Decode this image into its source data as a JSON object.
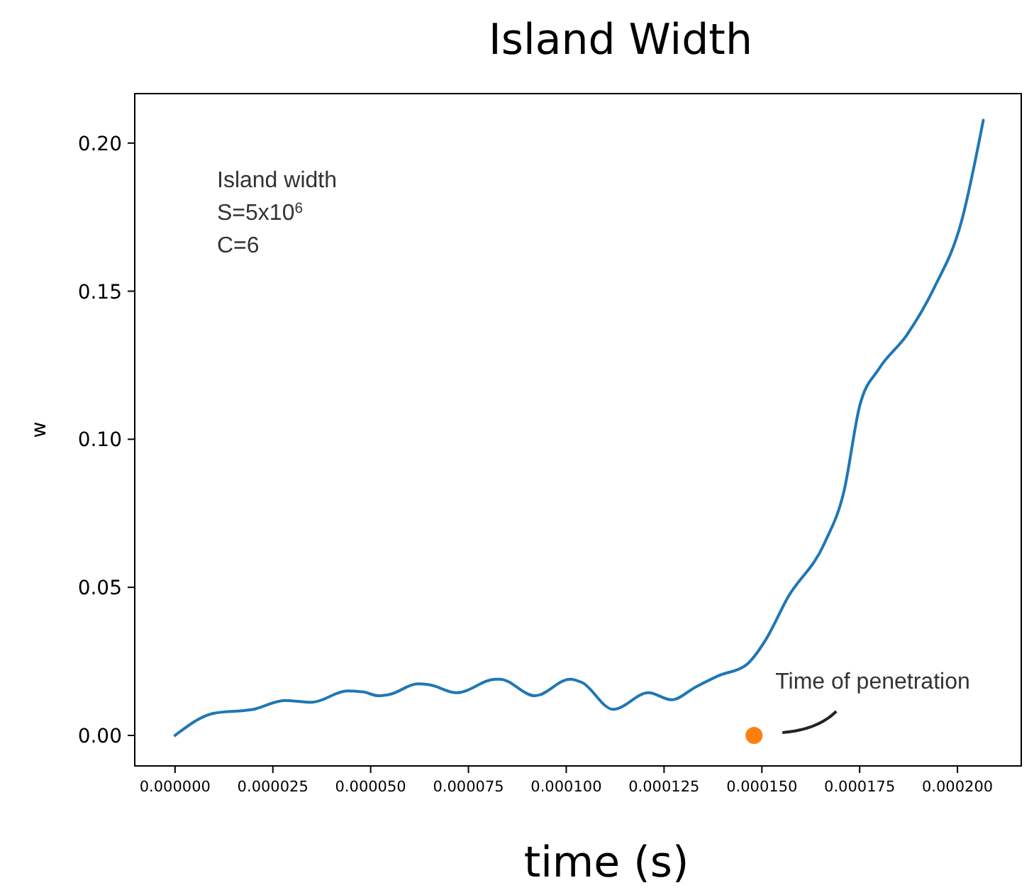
{
  "chart_data": {
    "type": "line",
    "title": "Island Width",
    "xlabel": "time (s)",
    "ylabel": "w",
    "xlim": [
      -1.03e-05,
      0.0002163
    ],
    "ylim": [
      -0.0103,
      0.2167
    ],
    "xticks": [
      {
        "value": 0,
        "label": "0.000000"
      },
      {
        "value": 2.5e-05,
        "label": "0.000025"
      },
      {
        "value": 5e-05,
        "label": "0.000050"
      },
      {
        "value": 7.5e-05,
        "label": "0.000075"
      },
      {
        "value": 0.0001,
        "label": "0.000100"
      },
      {
        "value": 0.000125,
        "label": "0.000125"
      },
      {
        "value": 0.00015,
        "label": "0.000150"
      },
      {
        "value": 0.000175,
        "label": "0.000175"
      },
      {
        "value": 0.0002,
        "label": "0.000200"
      }
    ],
    "yticks": [
      {
        "value": 0,
        "label": "0.00"
      },
      {
        "value": 0.05,
        "label": "0.05"
      },
      {
        "value": 0.1,
        "label": "0.10"
      },
      {
        "value": 0.15,
        "label": "0.15"
      },
      {
        "value": 0.2,
        "label": "0.20"
      }
    ],
    "series": [
      {
        "color": "#1f77b4",
        "x": [
          0,
          9.9e-06,
          2e-05,
          2.8e-05,
          3.5e-05,
          4.4e-05,
          4.8e-05,
          5.2e-05,
          5.5e-05,
          6.2e-05,
          6.5e-05,
          7.2e-05,
          8.2e-05,
          8.3e-05,
          9.2e-05,
          0.000101,
          0.000104,
          0.000112,
          0.000121,
          0.000127,
          0.000133,
          0.000139,
          0.000146,
          0.000151,
          0.0001566,
          0.000166,
          0.000171,
          0.000175,
          0.00018,
          0.000187,
          0.000194,
          0.000201,
          0.0002066
        ],
        "values": [
          0,
          0.0075,
          0.0088,
          0.0118,
          0.0112,
          0.015,
          0.0147,
          0.0134,
          0.0139,
          0.0174,
          0.0171,
          0.0144,
          0.019,
          0.019,
          0.0134,
          0.019,
          0.0179,
          0.0088,
          0.0144,
          0.012,
          0.0163,
          0.0202,
          0.0238,
          0.0323,
          0.0465,
          0.0649,
          0.0825,
          0.1112,
          0.1239,
          0.1351,
          0.151,
          0.1734,
          0.2077
        ]
      },
      {
        "type": "scatter",
        "color": "#ff7f0e",
        "x": [
          0.000148
        ],
        "values": [
          0
        ]
      }
    ],
    "annotations": [
      "Island width\nS=5x10$^{6}$\nC=6",
      {
        "text": "Time of penetration",
        "x": 0.000148,
        "y": 0
      }
    ]
  }
}
